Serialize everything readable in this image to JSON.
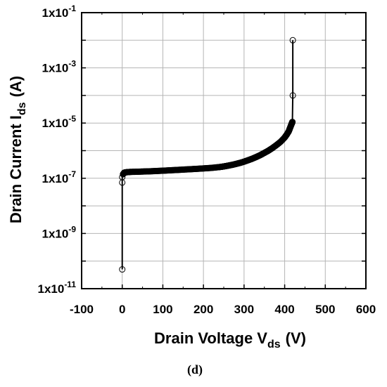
{
  "chart_data": {
    "type": "scatter",
    "xlabel": {
      "main": "Drain Voltage V",
      "sub": "ds",
      "unit": "(V)"
    },
    "ylabel": {
      "main": "Drain Current I",
      "sub": "ds",
      "unit": "(A)"
    },
    "xlim": [
      -100,
      600
    ],
    "ylim_exponent": [
      -11,
      -1
    ],
    "y_scale": "log",
    "x_ticks": [
      "-100",
      "0",
      "100",
      "200",
      "300",
      "400",
      "500",
      "600"
    ],
    "y_ticks": [
      {
        "base": "1x10",
        "exp": "-11"
      },
      {
        "base": "1x10",
        "exp": "-9"
      },
      {
        "base": "1x10",
        "exp": "-7"
      },
      {
        "base": "1x10",
        "exp": "-5"
      },
      {
        "base": "1x10",
        "exp": "-3"
      },
      {
        "base": "1x10",
        "exp": "-1"
      }
    ],
    "grid": true,
    "marker": "open-circle",
    "series": [
      {
        "x": [
          0,
          0,
          0,
          2,
          5,
          10,
          20,
          40,
          60,
          80,
          100,
          120,
          140,
          160,
          180,
          200,
          220,
          240,
          250,
          260,
          270,
          280,
          290,
          300,
          310,
          320,
          330,
          340,
          350,
          360,
          370,
          380,
          390,
          400,
          405,
          410,
          413,
          416,
          418,
          419,
          420,
          420
        ],
        "y": [
          5e-11,
          7e-08,
          1.1e-07,
          1.4e-07,
          1.6e-07,
          1.65e-07,
          1.7e-07,
          1.73e-07,
          1.77e-07,
          1.82e-07,
          1.88e-07,
          1.95e-07,
          2.02e-07,
          2.1e-07,
          2.18e-07,
          2.27e-07,
          2.38e-07,
          2.55e-07,
          2.68e-07,
          2.85e-07,
          3.05e-07,
          3.3e-07,
          3.6e-07,
          4e-07,
          4.5e-07,
          5.1e-07,
          5.9e-07,
          6.9e-07,
          8.3e-07,
          1e-06,
          1.25e-06,
          1.6e-06,
          2.1e-06,
          3e-06,
          3.8e-06,
          5e-06,
          6.5e-06,
          8.5e-06,
          1e-05,
          1.1e-05,
          0.0001,
          0.01
        ]
      }
    ]
  },
  "panel_label": "(d)"
}
